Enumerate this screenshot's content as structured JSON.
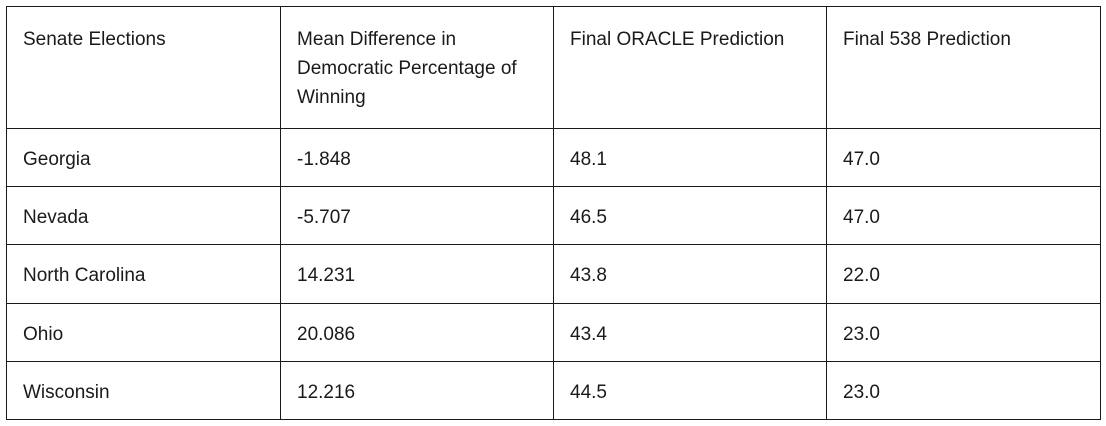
{
  "table": {
    "headers": [
      "Senate Elections",
      "Mean Difference in Democratic Percentage of Winning",
      "Final ORACLE Prediction",
      "Final 538 Prediction"
    ],
    "rows": [
      [
        "Georgia",
        "-1.848",
        "48.1",
        "47.0"
      ],
      [
        "Nevada",
        "-5.707",
        "46.5",
        "47.0"
      ],
      [
        "North Carolina",
        "14.231",
        "43.8",
        "22.0"
      ],
      [
        "Ohio",
        "20.086",
        "43.4",
        "23.0"
      ],
      [
        "Wisconsin",
        "12.216",
        "44.5",
        "23.0"
      ]
    ]
  }
}
